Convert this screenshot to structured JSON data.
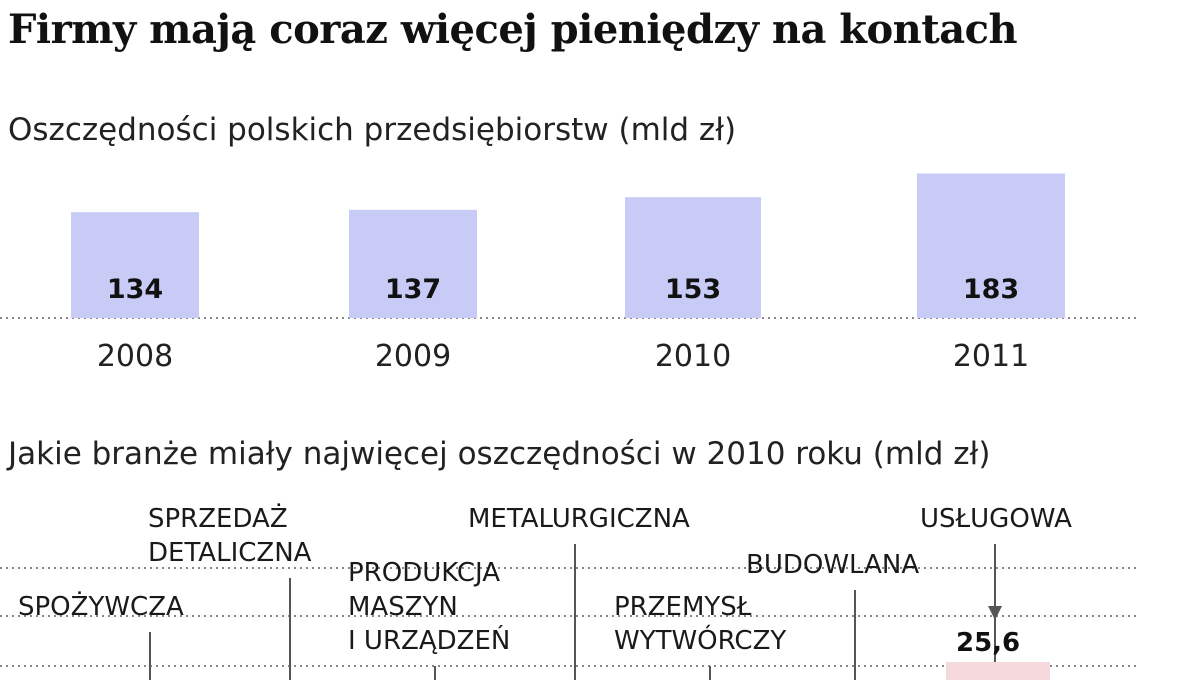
{
  "title": "Firmy mają coraz więcej pieniędzy na kontach",
  "chart_data": [
    {
      "type": "bar",
      "title": "Oszczędności polskich przedsiębiorstw (mld zł)",
      "categories": [
        "2008",
        "2009",
        "2010",
        "2011"
      ],
      "values": [
        134,
        137,
        153,
        183
      ],
      "ylim": [
        0,
        190
      ],
      "grid": false,
      "colors": {
        "bar": "#c9cbf7",
        "baseline": "#888888"
      }
    },
    {
      "type": "bar",
      "title": "Jakie branże miały najwięcej oszczędności w 2010 roku (mld zł)",
      "categories": [
        [
          "SPOŻYWCZA"
        ],
        [
          "SPRZEDAŻ",
          "DETALICZNA"
        ],
        [
          "PRODUKCJA",
          "MASZYN",
          "I URZĄDZEŃ"
        ],
        [
          "METALURGICZNA"
        ],
        [
          "PRZEMYSŁ",
          "WYTWÓRCZY"
        ],
        [
          "BUDOWLANA"
        ],
        [
          "USŁUGOWA"
        ]
      ],
      "values": [
        null,
        null,
        null,
        null,
        null,
        null,
        25.6
      ],
      "value_labels": [
        "",
        "",
        "",
        "",
        "",
        "",
        "25,6"
      ],
      "grid": true
    }
  ]
}
